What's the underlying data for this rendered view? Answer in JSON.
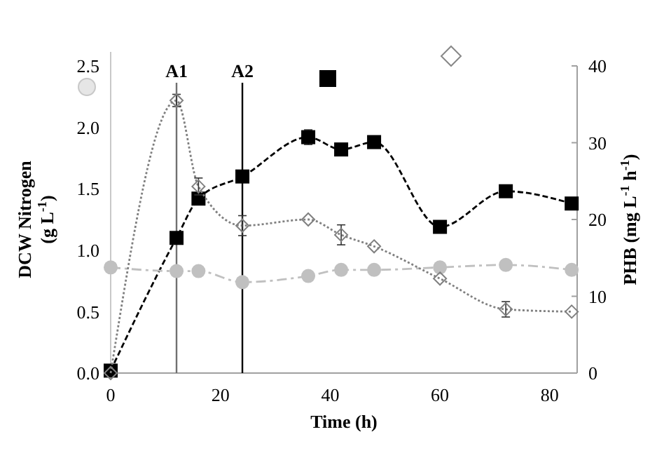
{
  "chart_data": {
    "type": "line",
    "xlabel": "Time (h)",
    "ylabel": "DCW   Nitrogen\n(g L$^{-1}$)",
    "y2label": "PHB (mg L$^{-1}$ h$^{-1}$)",
    "x": [
      0,
      12,
      16,
      24,
      36,
      42,
      48,
      60,
      72,
      84
    ],
    "series": [
      {
        "color": "#000000",
        "marker": "square",
        "line_style": "dashed",
        "values": [
          0.02,
          1.1,
          1.42,
          1.6,
          1.92,
          1.82,
          1.88,
          1.19,
          1.48,
          1.38
        ],
        "errors": [
          null,
          null,
          null,
          null,
          0.06,
          null,
          null,
          null,
          null,
          null
        ]
      },
      {
        "color": "#c0c0c0",
        "marker": "circle",
        "line_style": "dashdot",
        "values": [
          0.86,
          0.83,
          0.83,
          0.74,
          0.79,
          0.84,
          0.84,
          0.86,
          0.88,
          0.84
        ]
      },
      {
        "color": "#808080",
        "marker": "diamond",
        "line_style": "dotted",
        "axis": "y2",
        "values": [
          0,
          35.5,
          24.3,
          19.2,
          20,
          18,
          16.5,
          12.3,
          8.3,
          8
        ],
        "errors": [
          null,
          0.8,
          1.1,
          1.3,
          null,
          1.3,
          null,
          null,
          1,
          null
        ]
      }
    ],
    "xlim": [
      0,
      85
    ],
    "xticks": [
      0,
      20,
      40,
      60,
      80
    ],
    "ylim": [
      0,
      2.5
    ],
    "yticks": [
      {
        "value": 0,
        "label": "0.0"
      },
      {
        "value": 0.5,
        "label": "0.5"
      },
      {
        "value": 1,
        "label": "1.0"
      },
      {
        "value": 1.5,
        "label": "1.5"
      },
      {
        "value": 2,
        "label": "2.0"
      },
      {
        "value": 2.5,
        "label": "2.5"
      }
    ],
    "y2lim": [
      0,
      40
    ],
    "y2ticks": [
      0,
      10,
      20,
      30,
      40
    ],
    "ref_lines": [
      {
        "axis": "x",
        "value": 12,
        "label": "A1",
        "color": "#707070"
      },
      {
        "axis": "x",
        "value": 24,
        "label": "A2",
        "color": "#000000"
      }
    ],
    "grid": false
  }
}
